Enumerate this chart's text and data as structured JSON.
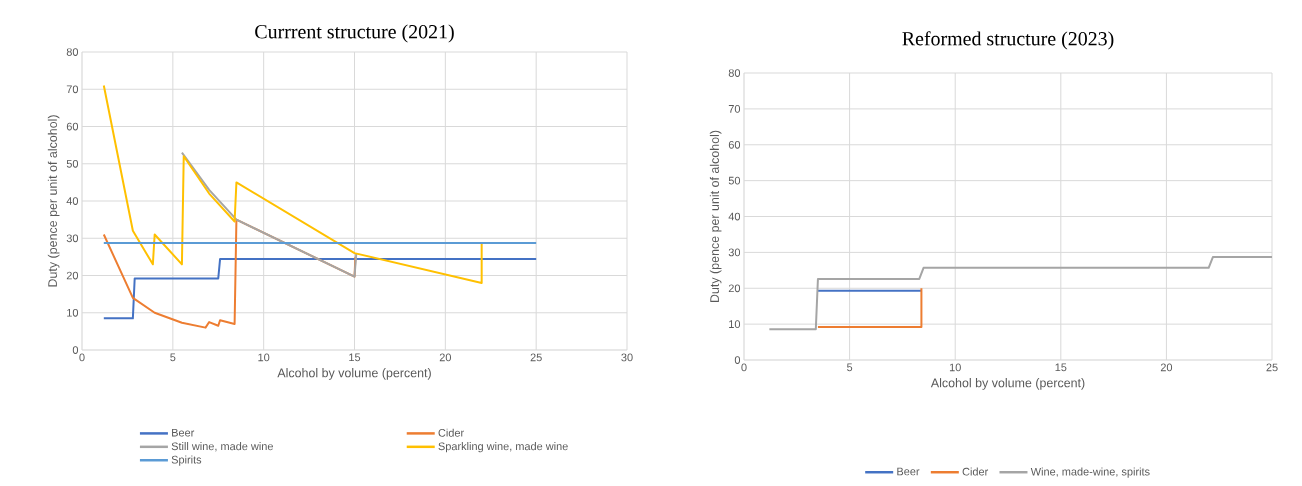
{
  "chart_data": [
    {
      "type": "line",
      "title": "Currrent structure (2021)",
      "xlabel": "Alcohol by volume (percent)",
      "ylabel": "Duty (pence per unit of alcohol)",
      "xlim": [
        0,
        30
      ],
      "ylim": [
        0,
        80
      ],
      "xticks": [
        0,
        5,
        10,
        15,
        20,
        25,
        30
      ],
      "yticks": [
        0,
        10,
        20,
        30,
        40,
        50,
        60,
        70,
        80
      ],
      "grid": true,
      "legend": "bottom",
      "series": [
        {
          "name": "Beer",
          "color": "#4472c4",
          "x": [
            1.2,
            2.8,
            2.9,
            7.5,
            7.6,
            25
          ],
          "values": [
            8.5,
            8.5,
            19.2,
            19.2,
            24.4,
            24.4
          ]
        },
        {
          "name": "Cider",
          "color": "#ed7d31",
          "x": [
            1.2,
            2.8,
            4,
            5.5,
            6.8,
            7,
            7.5,
            7.6,
            8.4,
            8.5,
            15,
            15.05
          ],
          "values": [
            31,
            14,
            10,
            7.3,
            6,
            7.5,
            6.5,
            8,
            7,
            35,
            19.7,
            25
          ]
        },
        {
          "name": "Still wine, made wine",
          "color": "#a5a5a5",
          "x": [
            5.5,
            7,
            8.5,
            15,
            15.1
          ],
          "values": [
            53,
            43,
            35,
            19.7,
            26
          ]
        },
        {
          "name": "Sparkling wine, made wine",
          "color": "#ffc000",
          "x": [
            1.2,
            2.8,
            3.9,
            4,
            5.5,
            5.6,
            7,
            8.4,
            8.5,
            15,
            22,
            22
          ],
          "values": [
            71,
            32,
            23,
            31,
            23,
            52,
            42,
            34.5,
            45,
            26,
            18,
            28.5
          ]
        },
        {
          "name": "Spirits",
          "color": "#5b9bd5",
          "x": [
            1.2,
            25
          ],
          "values": [
            28.7,
            28.7
          ]
        }
      ]
    },
    {
      "type": "line",
      "title": "Reformed structure (2023)",
      "xlabel": "Alcohol by volume (percent)",
      "ylabel": "Duty (pence per unit of alcohol)",
      "xlim": [
        0,
        25
      ],
      "ylim": [
        0,
        80
      ],
      "xticks": [
        0,
        5,
        10,
        15,
        20,
        25
      ],
      "yticks": [
        0,
        10,
        20,
        30,
        40,
        50,
        60,
        70,
        80
      ],
      "grid": true,
      "legend": "bottom",
      "series": [
        {
          "name": "Beer",
          "color": "#4472c4",
          "x": [
            3.5,
            8.4
          ],
          "values": [
            19.3,
            19.3
          ]
        },
        {
          "name": "Cider",
          "color": "#ed7d31",
          "x": [
            3.5,
            8.4,
            8.4
          ],
          "values": [
            9.2,
            9.2,
            20
          ]
        },
        {
          "name": "Wine, made-wine, spirits",
          "color": "#a5a5a5",
          "x": [
            1.2,
            3.4,
            3.5,
            8.3,
            8.5,
            22,
            22.2,
            25
          ],
          "values": [
            8.6,
            8.6,
            22.6,
            22.6,
            25.7,
            25.7,
            28.7,
            28.7
          ]
        }
      ]
    }
  ]
}
